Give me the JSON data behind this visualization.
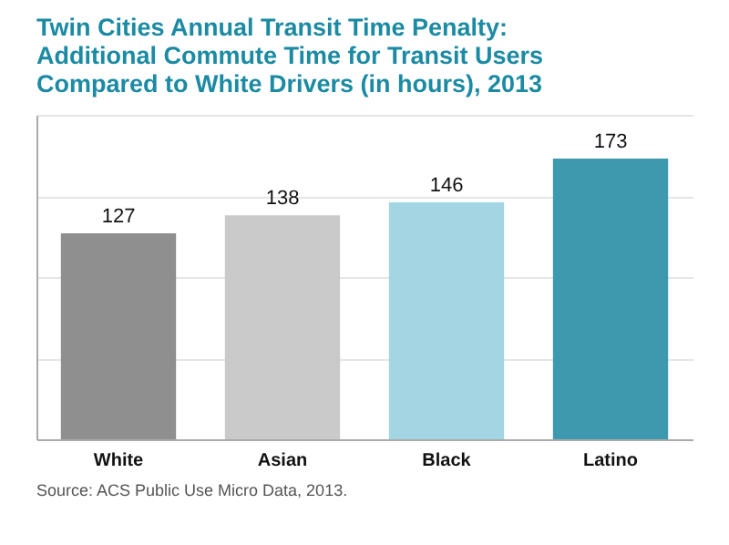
{
  "chart_data": {
    "type": "bar",
    "title": [
      "Twin Cities Annual Transit Time Penalty:",
      "Additional Commute Time for Transit Users",
      "Compared to White Drivers (in hours), 2013"
    ],
    "categories": [
      "White",
      "Asian",
      "Black",
      "Latino"
    ],
    "values": [
      127,
      138,
      146,
      173
    ],
    "colors": [
      "#8f8f8f",
      "#cacaca",
      "#a3d5e3",
      "#3e99af"
    ],
    "data_labels": true,
    "ylim": [
      0,
      200
    ],
    "yticks": [
      {
        "value": 0,
        "label": null
      },
      {
        "value": 50,
        "label": null
      },
      {
        "value": 100,
        "label": null
      },
      {
        "value": 150,
        "label": null
      },
      {
        "value": 200,
        "label": null
      }
    ],
    "grid": "y",
    "tick_labels": "x",
    "annotations": [
      "Source: ACS Public Use Micro Data, 2013."
    ]
  }
}
